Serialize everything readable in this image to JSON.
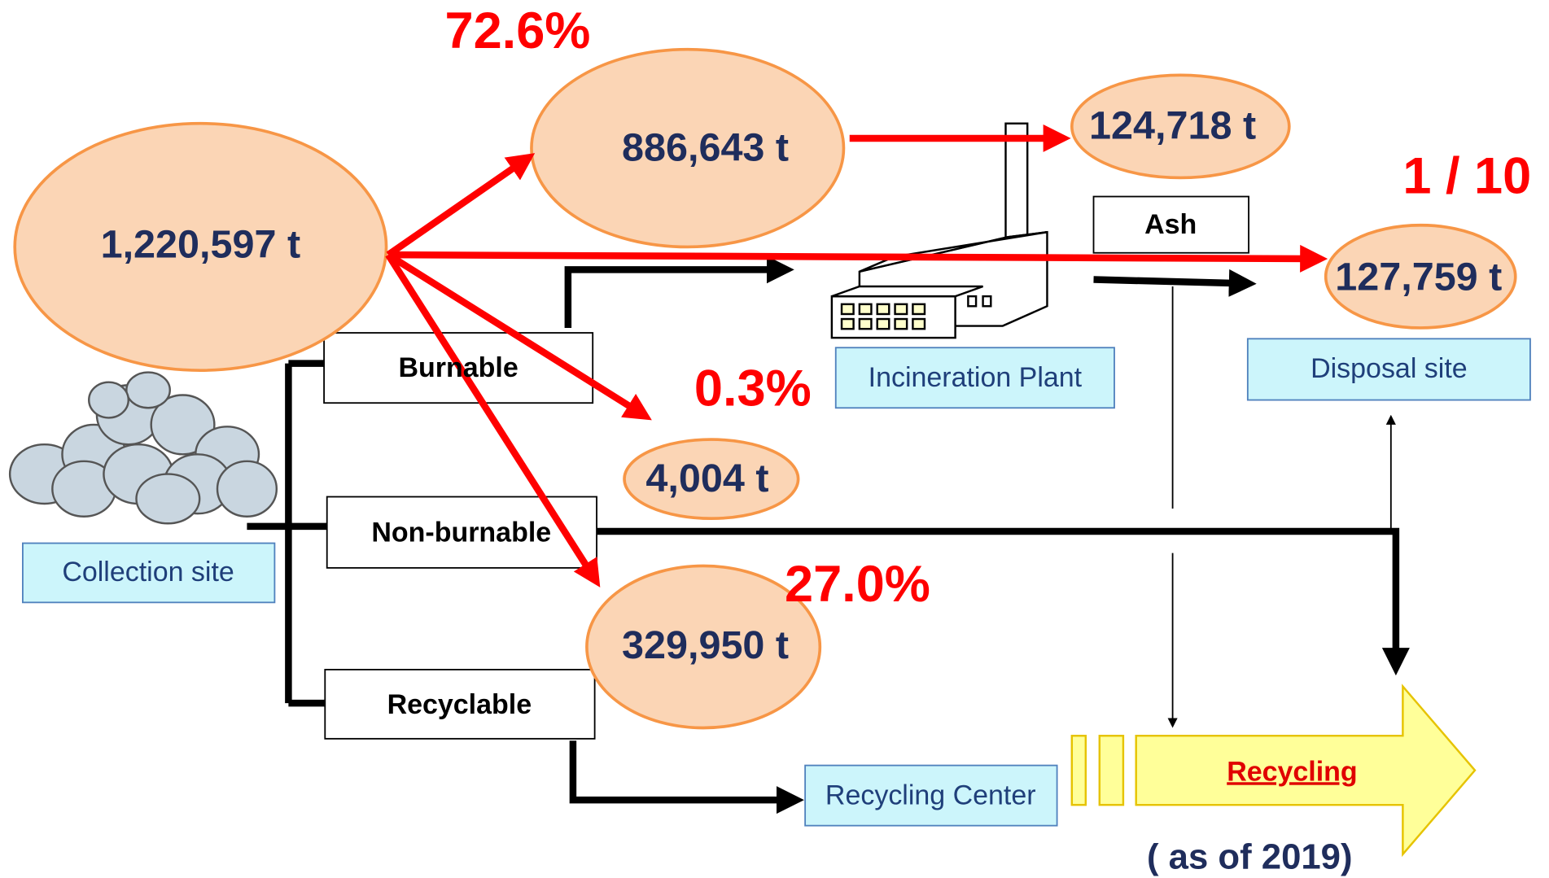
{
  "amounts": [
    "1,220,597 t",
    "886,643 t",
    "124,718 t",
    "127,759 t",
    "4,004 t",
    "329,950 t"
  ],
  "percentages": [
    "72.6%",
    "0.3%",
    "27.0%"
  ],
  "ratio": "1 / 10",
  "categories": [
    "Burnable",
    "Non-burnable",
    "Recyclable"
  ],
  "ash_label": "Ash",
  "facilities": [
    "Collection site",
    "Incineration Plant",
    "Disposal site",
    "Recycling Center"
  ],
  "recycling": "Recycling",
  "note": "( as of 2019)"
}
